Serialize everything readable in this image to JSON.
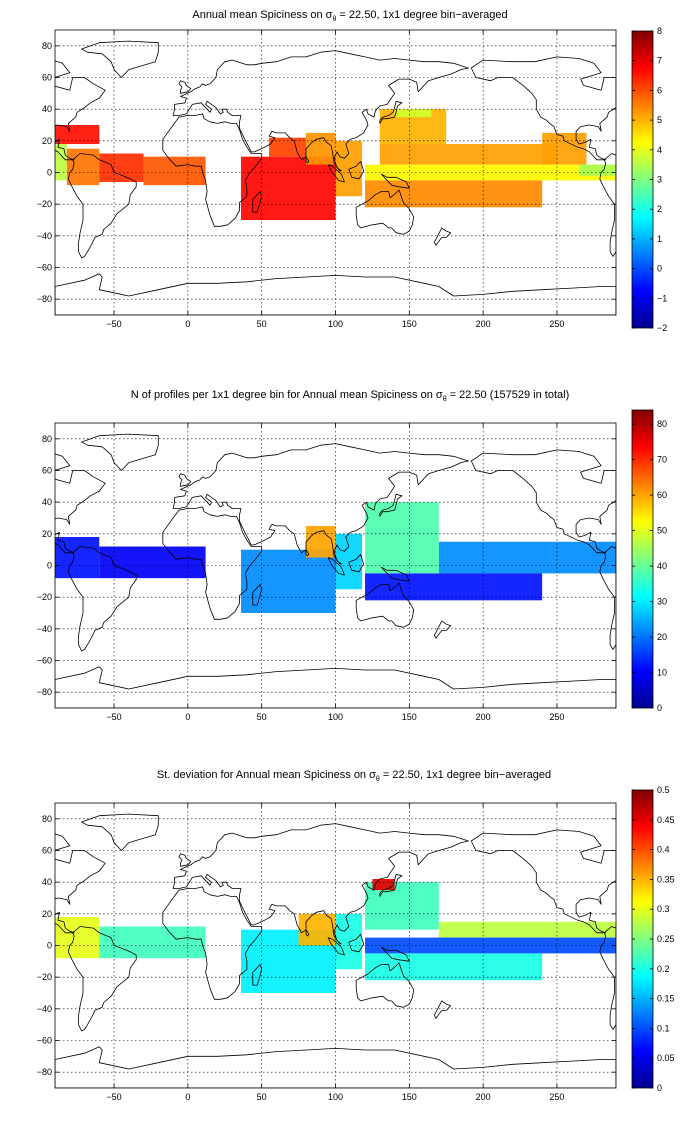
{
  "chart_data": [
    {
      "type": "heatmap",
      "title_prefix": "Annual mean Spiciness on ",
      "title_symbol": "σ",
      "title_subscript": "θ",
      "title_suffix": " = 22.50, 1x1 degree bin−averaged",
      "xlim": [
        -90,
        290
      ],
      "ylim": [
        -90,
        90
      ],
      "x_ticks": [
        -50,
        0,
        50,
        100,
        150,
        200,
        250
      ],
      "y_ticks": [
        -80,
        -60,
        -40,
        -20,
        0,
        20,
        40,
        60,
        80
      ],
      "x_tick_labels": [
        "−50",
        "0",
        "50",
        "100",
        "150",
        "200",
        "250"
      ],
      "y_tick_labels": [
        "−80",
        "−60",
        "−40",
        "−20",
        "0",
        "20",
        "40",
        "60",
        "80"
      ],
      "grid": true,
      "colormap": "jet",
      "clim": [
        -2,
        8
      ],
      "colorbar_ticks": [
        -2,
        -1,
        0,
        1,
        2,
        3,
        4,
        5,
        6,
        7,
        8
      ],
      "colorbar_tick_labels": [
        "−2",
        "−1",
        "0",
        "1",
        "2",
        "3",
        "4",
        "5",
        "6",
        "7",
        "8"
      ],
      "colorbar_location": "right",
      "regions": [
        {
          "x": [
            -90,
            -82
          ],
          "y": [
            -5,
            18
          ],
          "value": 3.6
        },
        {
          "x": [
            -82,
            -60
          ],
          "y": [
            -8,
            15
          ],
          "value": 5.6
        },
        {
          "x": [
            -60,
            -30
          ],
          "y": [
            -6,
            12
          ],
          "value": 6.3
        },
        {
          "x": [
            -30,
            12
          ],
          "y": [
            -8,
            10
          ],
          "value": 5.9
        },
        {
          "x": [
            -95,
            -60
          ],
          "y": [
            18,
            30
          ],
          "value": 6.6
        },
        {
          "x": [
            36,
            100
          ],
          "y": [
            -30,
            10
          ],
          "value": 6.7
        },
        {
          "x": [
            55,
            80
          ],
          "y": [
            10,
            22
          ],
          "value": 6.1
        },
        {
          "x": [
            80,
            100
          ],
          "y": [
            5,
            25
          ],
          "value": 5.3
        },
        {
          "x": [
            100,
            118
          ],
          "y": [
            -15,
            20
          ],
          "value": 5.2
        },
        {
          "x": [
            120,
            290
          ],
          "y": [
            -5,
            5
          ],
          "value": 4.3
        },
        {
          "x": [
            120,
            240
          ],
          "y": [
            -22,
            -5
          ],
          "value": 5.4
        },
        {
          "x": [
            130,
            250
          ],
          "y": [
            5,
            18
          ],
          "value": 5.2
        },
        {
          "x": [
            130,
            175
          ],
          "y": [
            18,
            40
          ],
          "value": 5.0
        },
        {
          "x": [
            140,
            165
          ],
          "y": [
            35,
            40
          ],
          "value": 3.8
        },
        {
          "x": [
            240,
            270
          ],
          "y": [
            5,
            25
          ],
          "value": 5.2
        },
        {
          "x": [
            265,
            290
          ],
          "y": [
            -2,
            5
          ],
          "value": 3.4
        }
      ]
    },
    {
      "type": "heatmap",
      "title_prefix": "N of profiles per 1x1 degree bin for Annual mean Spiciness on ",
      "title_symbol": "σ",
      "title_subscript": "θ",
      "title_suffix": " = 22.50 (157529 in total)",
      "xlim": [
        -90,
        290
      ],
      "ylim": [
        -90,
        90
      ],
      "x_ticks": [
        -50,
        0,
        50,
        100,
        150,
        200,
        250
      ],
      "y_ticks": [
        -80,
        -60,
        -40,
        -20,
        0,
        20,
        40,
        60,
        80
      ],
      "x_tick_labels": [
        "−50",
        "0",
        "50",
        "100",
        "150",
        "200",
        "250"
      ],
      "y_tick_labels": [
        "−80",
        "−60",
        "−40",
        "−20",
        "0",
        "20",
        "40",
        "60",
        "80"
      ],
      "grid": true,
      "colormap": "jet",
      "clim": [
        0,
        84
      ],
      "colorbar_ticks": [
        0,
        10,
        20,
        30,
        40,
        50,
        60,
        70,
        80
      ],
      "colorbar_tick_labels": [
        "0",
        "10",
        "20",
        "30",
        "40",
        "50",
        "60",
        "70",
        "80"
      ],
      "colorbar_location": "right",
      "total_profiles": 157529,
      "regions": [
        {
          "x": [
            -90,
            -60
          ],
          "y": [
            -8,
            18
          ],
          "value": 12
        },
        {
          "x": [
            -60,
            12
          ],
          "y": [
            -8,
            12
          ],
          "value": 10
        },
        {
          "x": [
            36,
            100
          ],
          "y": [
            -30,
            10
          ],
          "value": 22
        },
        {
          "x": [
            80,
            100
          ],
          "y": [
            5,
            25
          ],
          "value": 60
        },
        {
          "x": [
            100,
            118
          ],
          "y": [
            -15,
            20
          ],
          "value": 28
        },
        {
          "x": [
            120,
            170
          ],
          "y": [
            -5,
            40
          ],
          "value": 38
        },
        {
          "x": [
            170,
            290
          ],
          "y": [
            -5,
            15
          ],
          "value": 22
        },
        {
          "x": [
            120,
            240
          ],
          "y": [
            -22,
            -5
          ],
          "value": 12
        }
      ]
    },
    {
      "type": "heatmap",
      "title_prefix": "St. deviation for Annual mean Spiciness on ",
      "title_symbol": "σ",
      "title_subscript": "θ",
      "title_suffix": " = 22.50, 1x1 degree bin−averaged",
      "xlim": [
        -90,
        290
      ],
      "ylim": [
        -90,
        90
      ],
      "x_ticks": [
        -50,
        0,
        50,
        100,
        150,
        200,
        250
      ],
      "y_ticks": [
        -80,
        -60,
        -40,
        -20,
        0,
        20,
        40,
        60,
        80
      ],
      "x_tick_labels": [
        "−50",
        "0",
        "50",
        "100",
        "150",
        "200",
        "250"
      ],
      "y_tick_labels": [
        "−80",
        "−60",
        "−40",
        "−20",
        "0",
        "20",
        "40",
        "60",
        "80"
      ],
      "grid": true,
      "colormap": "jet",
      "clim": [
        0,
        0.5
      ],
      "colorbar_ticks": [
        0,
        0.05,
        0.1,
        0.15,
        0.2,
        0.25,
        0.3,
        0.35,
        0.4,
        0.45,
        0.5
      ],
      "colorbar_tick_labels": [
        "0",
        "0.05",
        "0.1",
        "0.15",
        "0.2",
        "0.25",
        "0.3",
        "0.35",
        "0.4",
        "0.45",
        "0.5"
      ],
      "colorbar_location": "right",
      "regions": [
        {
          "x": [
            -90,
            -60
          ],
          "y": [
            -8,
            18
          ],
          "value": 0.3
        },
        {
          "x": [
            -60,
            12
          ],
          "y": [
            -8,
            12
          ],
          "value": 0.22
        },
        {
          "x": [
            36,
            100
          ],
          "y": [
            -30,
            10
          ],
          "value": 0.18
        },
        {
          "x": [
            75,
            100
          ],
          "y": [
            0,
            20
          ],
          "value": 0.35
        },
        {
          "x": [
            100,
            118
          ],
          "y": [
            -15,
            20
          ],
          "value": 0.2
        },
        {
          "x": [
            120,
            170
          ],
          "y": [
            10,
            40
          ],
          "value": 0.22
        },
        {
          "x": [
            125,
            140
          ],
          "y": [
            35,
            42
          ],
          "value": 0.45
        },
        {
          "x": [
            170,
            290
          ],
          "y": [
            5,
            15
          ],
          "value": 0.28
        },
        {
          "x": [
            120,
            290
          ],
          "y": [
            -5,
            5
          ],
          "value": 0.1
        },
        {
          "x": [
            120,
            240
          ],
          "y": [
            -22,
            -5
          ],
          "value": 0.2
        }
      ]
    }
  ]
}
